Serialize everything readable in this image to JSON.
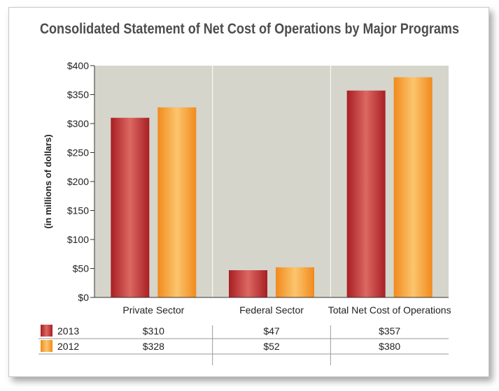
{
  "chart_data": {
    "type": "bar",
    "title": "Consolidated Statement of Net Cost of Operations by Major Programs",
    "ylabel": "(in millions of dollars)",
    "xlabel": "",
    "ylim": [
      0,
      400
    ],
    "yticks": [
      0,
      50,
      100,
      150,
      200,
      250,
      300,
      350,
      400
    ],
    "ytick_labels": [
      "$0",
      "$50",
      "$100",
      "$150",
      "$200",
      "$250",
      "$300",
      "$350",
      "$400"
    ],
    "categories": [
      "Private Sector",
      "Federal Sector",
      "Total Net Cost of Operations"
    ],
    "series": [
      {
        "name": "2013",
        "values": [
          310,
          47,
          357
        ],
        "color": "#c0383a"
      },
      {
        "name": "2012",
        "values": [
          328,
          52,
          380
        ],
        "color": "#f39a2b"
      }
    ],
    "table": [
      [
        "$310",
        "$47",
        "$357"
      ],
      [
        "$328",
        "$52",
        "$380"
      ]
    ],
    "plot_background": "#d6d5cb",
    "grid": false
  }
}
